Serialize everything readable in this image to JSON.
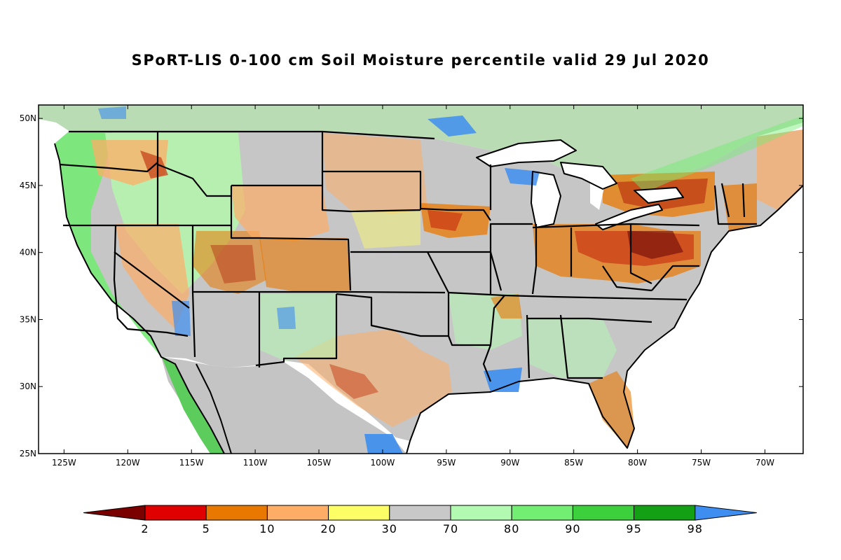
{
  "title": "SPoRT-LIS 0-100 cm Soil Moisture percentile valid 29 Jul 2020",
  "map": {
    "lon_range": [
      -127,
      -67
    ],
    "lat_range": [
      25,
      51
    ],
    "x_ticks": [
      {
        "value": -125,
        "label": "125W"
      },
      {
        "value": -120,
        "label": "120W"
      },
      {
        "value": -115,
        "label": "115W"
      },
      {
        "value": -110,
        "label": "110W"
      },
      {
        "value": -105,
        "label": "105W"
      },
      {
        "value": -100,
        "label": "100W"
      },
      {
        "value": -95,
        "label": "95W"
      },
      {
        "value": -90,
        "label": "90W"
      },
      {
        "value": -85,
        "label": "85W"
      },
      {
        "value": -80,
        "label": "80W"
      },
      {
        "value": -75,
        "label": "75W"
      },
      {
        "value": -70,
        "label": "70W"
      }
    ],
    "y_ticks": [
      {
        "value": 50,
        "label": "50N"
      },
      {
        "value": 45,
        "label": "45N"
      },
      {
        "value": 40,
        "label": "40N"
      },
      {
        "value": 35,
        "label": "35N"
      },
      {
        "value": 30,
        "label": "30N"
      },
      {
        "value": 25,
        "label": "25N"
      }
    ]
  },
  "colorbar": {
    "under_color": "#7a0000",
    "over_color": "#3d8ef0",
    "colors": [
      "#e10000",
      "#e97800",
      "#fdad66",
      "#fdfd66",
      "#c8c8c8",
      "#b2fab2",
      "#72ee72",
      "#3cd03c",
      "#14a014"
    ],
    "labels": [
      "2",
      "5",
      "10",
      "20",
      "30",
      "70",
      "80",
      "90",
      "95",
      "98"
    ]
  }
}
